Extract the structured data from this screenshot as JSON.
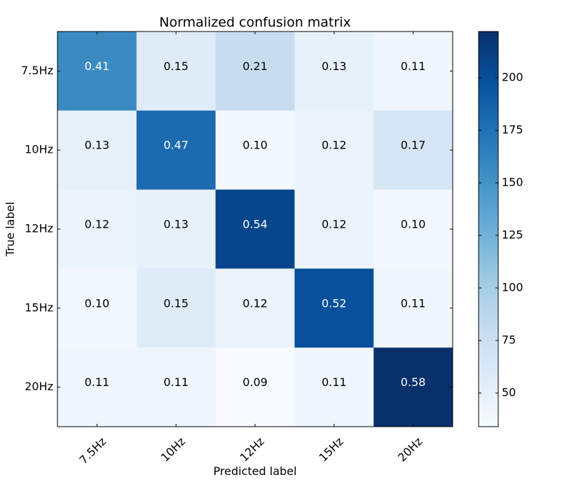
{
  "chart_data": {
    "type": "heatmap",
    "title": "Normalized confusion matrix",
    "xlabel": "Predicted label",
    "ylabel": "True label",
    "x_categories": [
      "7.5Hz",
      "10Hz",
      "12Hz",
      "15Hz",
      "20Hz"
    ],
    "y_categories": [
      "7.5Hz",
      "10Hz",
      "12Hz",
      "15Hz",
      "20Hz"
    ],
    "values": [
      [
        0.41,
        0.15,
        0.21,
        0.13,
        0.11
      ],
      [
        0.13,
        0.47,
        0.1,
        0.12,
        0.17
      ],
      [
        0.12,
        0.13,
        0.54,
        0.12,
        0.1
      ],
      [
        0.1,
        0.15,
        0.12,
        0.52,
        0.11
      ],
      [
        0.11,
        0.11,
        0.09,
        0.11,
        0.58
      ]
    ],
    "cell_labels": [
      [
        "0.41",
        "0.15",
        "0.21",
        "0.13",
        "0.11"
      ],
      [
        "0.13",
        "0.47",
        "0.10",
        "0.12",
        "0.17"
      ],
      [
        "0.12",
        "0.13",
        "0.54",
        "0.12",
        "0.10"
      ],
      [
        "0.10",
        "0.15",
        "0.12",
        "0.52",
        "0.11"
      ],
      [
        "0.11",
        "0.11",
        "0.09",
        "0.11",
        "0.58"
      ]
    ],
    "colormap": "Blues",
    "colorbar": {
      "range": [
        34,
        222
      ],
      "ticks": [
        50,
        75,
        100,
        125,
        150,
        175,
        200
      ]
    },
    "grid": false,
    "legend": "none"
  }
}
